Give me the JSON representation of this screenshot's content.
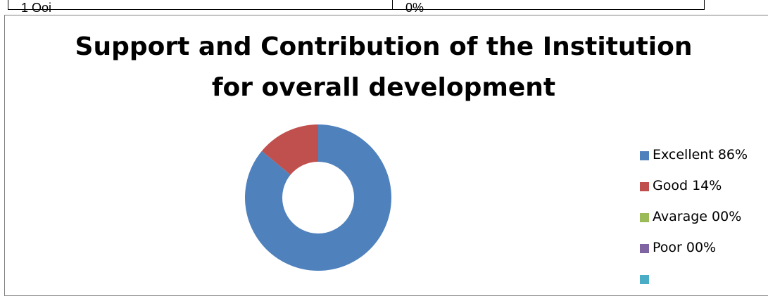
{
  "top_table": {
    "left_cell_text": "1 Ooi",
    "right_cell_text": "0%"
  },
  "chart_data": {
    "type": "pie",
    "donut": true,
    "title": "Support and Contribution of the Institution for overall development",
    "title_lines": [
      "Support and Contribution of the Institution",
      "for overall development"
    ],
    "categories": [
      "Excellent 86%",
      "Good 14%",
      "Avarage 00%",
      "Poor 00%",
      ""
    ],
    "values": [
      86,
      14,
      0,
      0,
      0
    ],
    "colors": [
      "#4f81bd",
      "#c0504d",
      "#9bbb59",
      "#8064a2",
      "#4bacc6"
    ],
    "legend_position": "right"
  }
}
